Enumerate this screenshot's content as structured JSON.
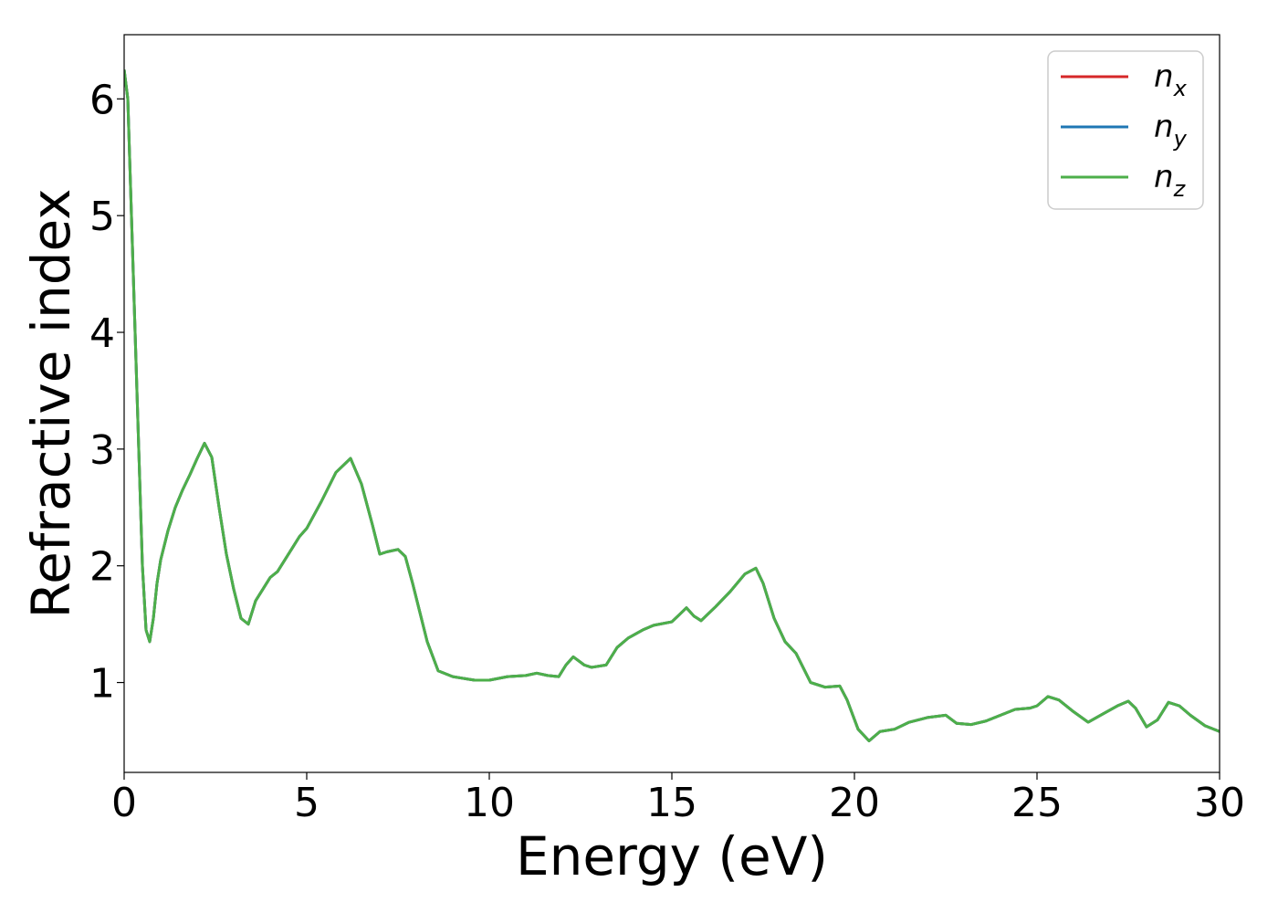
{
  "chart_data": {
    "type": "line",
    "xlabel": "Energy (eV)",
    "ylabel": "Refractive index",
    "xlim": [
      0,
      30
    ],
    "ylim": [
      0.23,
      6.55
    ],
    "xticks": [
      0,
      5,
      10,
      15,
      20,
      25,
      30
    ],
    "yticks": [
      1,
      2,
      3,
      4,
      5,
      6
    ],
    "grid": false,
    "legend_position": "top-right",
    "series": [
      {
        "name": "n",
        "sub": "x",
        "color": "#d62728"
      },
      {
        "name": "n",
        "sub": "y",
        "color": "#1f77b4"
      },
      {
        "name": "n",
        "sub": "z",
        "color": "#4daf4a"
      }
    ],
    "x": [
      0,
      0.1,
      0.2,
      0.3,
      0.4,
      0.5,
      0.6,
      0.7,
      0.8,
      0.9,
      1.0,
      1.2,
      1.4,
      1.6,
      1.8,
      2.0,
      2.2,
      2.4,
      2.6,
      2.8,
      3.0,
      3.2,
      3.4,
      3.6,
      3.8,
      4.0,
      4.2,
      4.4,
      4.6,
      4.8,
      5.0,
      5.4,
      5.8,
      6.2,
      6.5,
      6.8,
      7.0,
      7.2,
      7.5,
      7.7,
      7.9,
      8.1,
      8.3,
      8.6,
      9.0,
      9.4,
      9.6,
      9.8,
      10.0,
      10.5,
      11.0,
      11.3,
      11.6,
      11.9,
      12.1,
      12.3,
      12.6,
      12.8,
      13.2,
      13.5,
      13.8,
      14.2,
      14.5,
      15.0,
      15.2,
      15.4,
      15.6,
      15.8,
      16.2,
      16.6,
      17.0,
      17.3,
      17.5,
      17.8,
      18.1,
      18.4,
      18.8,
      19.2,
      19.6,
      19.8,
      20.1,
      20.4,
      20.7,
      21.1,
      21.5,
      22.0,
      22.5,
      22.8,
      23.2,
      23.6,
      24.0,
      24.4,
      24.8,
      25.0,
      25.3,
      25.6,
      26.0,
      26.4,
      26.8,
      27.2,
      27.5,
      27.7,
      28.0,
      28.3,
      28.6,
      28.9,
      29.2,
      29.6,
      30.0
    ],
    "values": [
      6.25,
      6.0,
      5.0,
      4.0,
      3.0,
      2.0,
      1.45,
      1.35,
      1.55,
      1.85,
      2.05,
      2.3,
      2.5,
      2.65,
      2.78,
      2.92,
      3.05,
      2.93,
      2.5,
      2.1,
      1.8,
      1.55,
      1.5,
      1.7,
      1.8,
      1.9,
      1.95,
      2.05,
      2.15,
      2.25,
      2.32,
      2.55,
      2.8,
      2.92,
      2.7,
      2.35,
      2.1,
      2.12,
      2.14,
      2.08,
      1.85,
      1.6,
      1.35,
      1.1,
      1.05,
      1.03,
      1.02,
      1.02,
      1.02,
      1.05,
      1.06,
      1.08,
      1.06,
      1.05,
      1.15,
      1.22,
      1.15,
      1.13,
      1.15,
      1.3,
      1.38,
      1.45,
      1.49,
      1.52,
      1.58,
      1.64,
      1.57,
      1.53,
      1.65,
      1.78,
      1.93,
      1.98,
      1.85,
      1.55,
      1.35,
      1.25,
      1.0,
      0.96,
      0.97,
      0.85,
      0.6,
      0.5,
      0.58,
      0.6,
      0.66,
      0.7,
      0.72,
      0.65,
      0.64,
      0.67,
      0.72,
      0.77,
      0.78,
      0.8,
      0.88,
      0.85,
      0.75,
      0.66,
      0.73,
      0.8,
      0.84,
      0.78,
      0.62,
      0.68,
      0.83,
      0.8,
      0.72,
      0.63,
      0.58
    ]
  }
}
